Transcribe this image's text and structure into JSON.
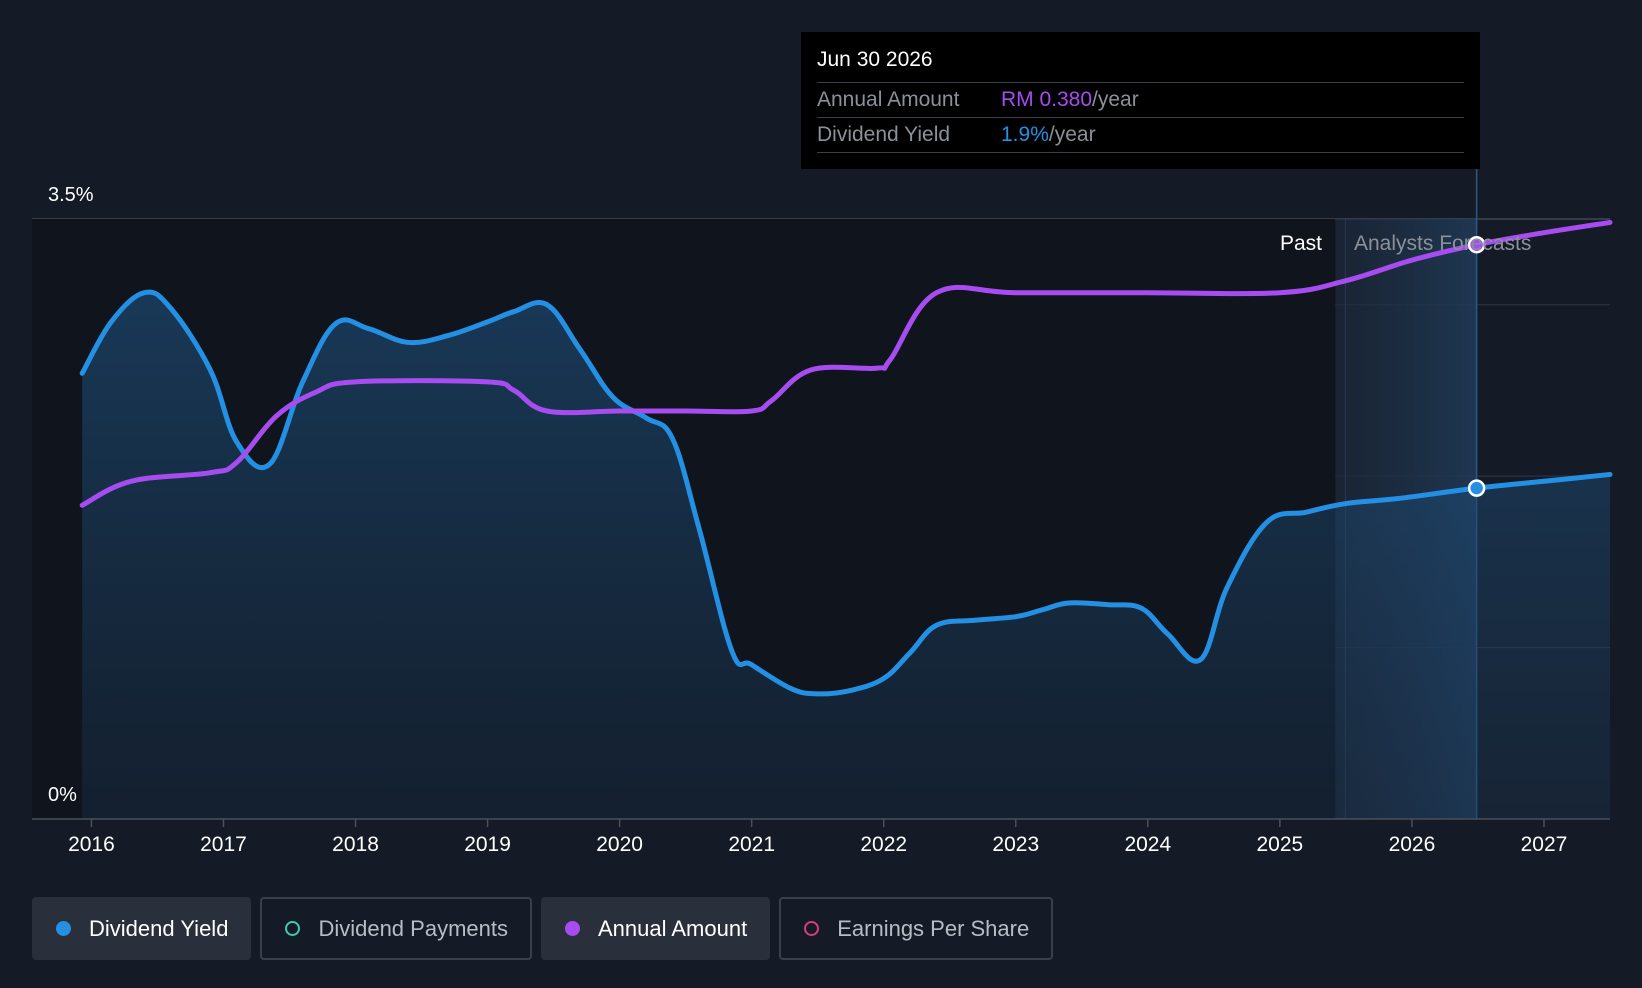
{
  "tooltip": {
    "date": "Jun 30 2026",
    "rows": [
      {
        "label": "Annual Amount",
        "value": "RM 0.380",
        "unit": "/year",
        "color": "#a64cf0"
      },
      {
        "label": "Dividend Yield",
        "value": "1.9%",
        "unit": "/year",
        "color": "#2390e4"
      }
    ]
  },
  "region_labels": {
    "past": "Past",
    "forecast": "Analysts Forecasts"
  },
  "legend": [
    {
      "label": "Dividend Yield",
      "color": "#2390e4",
      "active": true
    },
    {
      "label": "Dividend Payments",
      "color": "#3ec9b4",
      "active": false
    },
    {
      "label": "Annual Amount",
      "color": "#a64cf0",
      "active": true
    },
    {
      "label": "Earnings Per Share",
      "color": "#d63d7c",
      "active": false
    }
  ],
  "chart_data": {
    "type": "line",
    "ylabel_ticks": [
      "3.5%",
      "0%"
    ],
    "ylim": [
      0,
      3.5
    ],
    "xlim": [
      2015.55,
      2027.5
    ],
    "x_ticks": [
      2016,
      2017,
      2018,
      2019,
      2020,
      2021,
      2022,
      2023,
      2024,
      2025,
      2026,
      2027
    ],
    "forecast_start": 2025.42,
    "highlight_x": 2026.49,
    "grid": true,
    "series": [
      {
        "name": "Dividend Yield",
        "color": "#2390e4",
        "area": true,
        "x": [
          2015.93,
          2016.15,
          2016.4,
          2016.6,
          2016.9,
          2017.1,
          2017.35,
          2017.6,
          2017.85,
          2018.1,
          2018.4,
          2018.7,
          2019.0,
          2019.2,
          2019.45,
          2019.7,
          2019.95,
          2020.2,
          2020.4,
          2020.6,
          2020.85,
          2021.0,
          2021.3,
          2021.5,
          2021.75,
          2022.0,
          2022.2,
          2022.4,
          2022.7,
          2023.0,
          2023.2,
          2023.4,
          2023.7,
          2023.95,
          2024.15,
          2024.4,
          2024.6,
          2024.9,
          2025.2,
          2025.5,
          2025.9,
          2026.49,
          2027.0,
          2027.5
        ],
        "y": [
          2.6,
          2.9,
          3.07,
          2.98,
          2.62,
          2.2,
          2.07,
          2.55,
          2.89,
          2.86,
          2.78,
          2.82,
          2.9,
          2.96,
          3.0,
          2.74,
          2.46,
          2.34,
          2.22,
          1.7,
          0.98,
          0.9,
          0.76,
          0.73,
          0.75,
          0.82,
          0.97,
          1.13,
          1.16,
          1.18,
          1.22,
          1.26,
          1.25,
          1.23,
          1.08,
          0.93,
          1.35,
          1.73,
          1.79,
          1.84,
          1.87,
          1.93,
          1.97,
          2.01
        ]
      },
      {
        "name": "Annual Amount",
        "color": "#a64cf0",
        "area": false,
        "x": [
          2015.93,
          2016.3,
          2016.9,
          2017.1,
          2017.4,
          2017.7,
          2018.0,
          2019.0,
          2019.2,
          2019.45,
          2020.0,
          2020.5,
          2021.0,
          2021.15,
          2021.45,
          2021.95,
          2022.05,
          2022.4,
          2023.0,
          2024.0,
          2025.0,
          2025.5,
          2026.0,
          2026.49,
          2027.0,
          2027.5
        ],
        "y": [
          1.83,
          1.97,
          2.02,
          2.08,
          2.35,
          2.49,
          2.55,
          2.55,
          2.5,
          2.38,
          2.38,
          2.38,
          2.38,
          2.44,
          2.62,
          2.63,
          2.68,
          3.07,
          3.07,
          3.07,
          3.07,
          3.14,
          3.26,
          3.35,
          3.42,
          3.48
        ]
      }
    ]
  }
}
